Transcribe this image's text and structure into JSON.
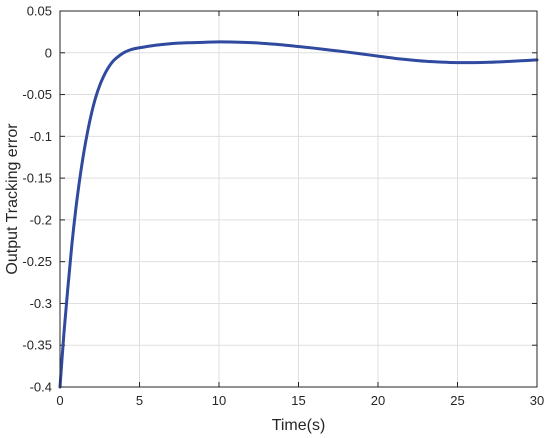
{
  "chart_data": {
    "type": "line",
    "title": "",
    "xlabel": "Time(s)",
    "ylabel": "Output Tracking error",
    "xlim": [
      0,
      30
    ],
    "ylim": [
      -0.4,
      0.05
    ],
    "xticks": [
      0,
      5,
      10,
      15,
      20,
      25,
      30
    ],
    "xtick_labels": [
      "0",
      "5",
      "10",
      "15",
      "20",
      "25",
      "30"
    ],
    "yticks": [
      0.05,
      0,
      -0.05,
      -0.1,
      -0.15,
      -0.2,
      -0.25,
      -0.3,
      -0.35,
      -0.4
    ],
    "ytick_labels": [
      "0.05",
      "0",
      "-0.05",
      "-0.1",
      "-0.15",
      "-0.2",
      "-0.25",
      "-0.3",
      "-0.35",
      "-0.4"
    ],
    "grid": true,
    "legend": "none",
    "series": [
      {
        "color": "#2f4a9e",
        "x": [
          0,
          0.25,
          0.5,
          0.75,
          1,
          1.25,
          1.5,
          1.75,
          2,
          2.25,
          2.5,
          2.75,
          3,
          3.25,
          3.5,
          4,
          4.5,
          5,
          6,
          7,
          8,
          9,
          10,
          11,
          12,
          13,
          14,
          15,
          16,
          17,
          18,
          19,
          20,
          21,
          22,
          23,
          24,
          25,
          26,
          27,
          28,
          29,
          30
        ],
        "y": [
          -0.4,
          -0.335,
          -0.28,
          -0.229,
          -0.186,
          -0.15,
          -0.119,
          -0.093,
          -0.071,
          -0.053,
          -0.039,
          -0.028,
          -0.019,
          -0.012,
          -0.007,
          0,
          0.004,
          0.006,
          0.009,
          0.011,
          0.012,
          0.0125,
          0.013,
          0.0128,
          0.0122,
          0.011,
          0.0095,
          0.0075,
          0.0055,
          0.0032,
          0.001,
          -0.0015,
          -0.004,
          -0.0065,
          -0.0085,
          -0.0102,
          -0.0112,
          -0.0118,
          -0.0118,
          -0.0114,
          -0.0106,
          -0.0096,
          -0.0085
        ]
      }
    ]
  }
}
